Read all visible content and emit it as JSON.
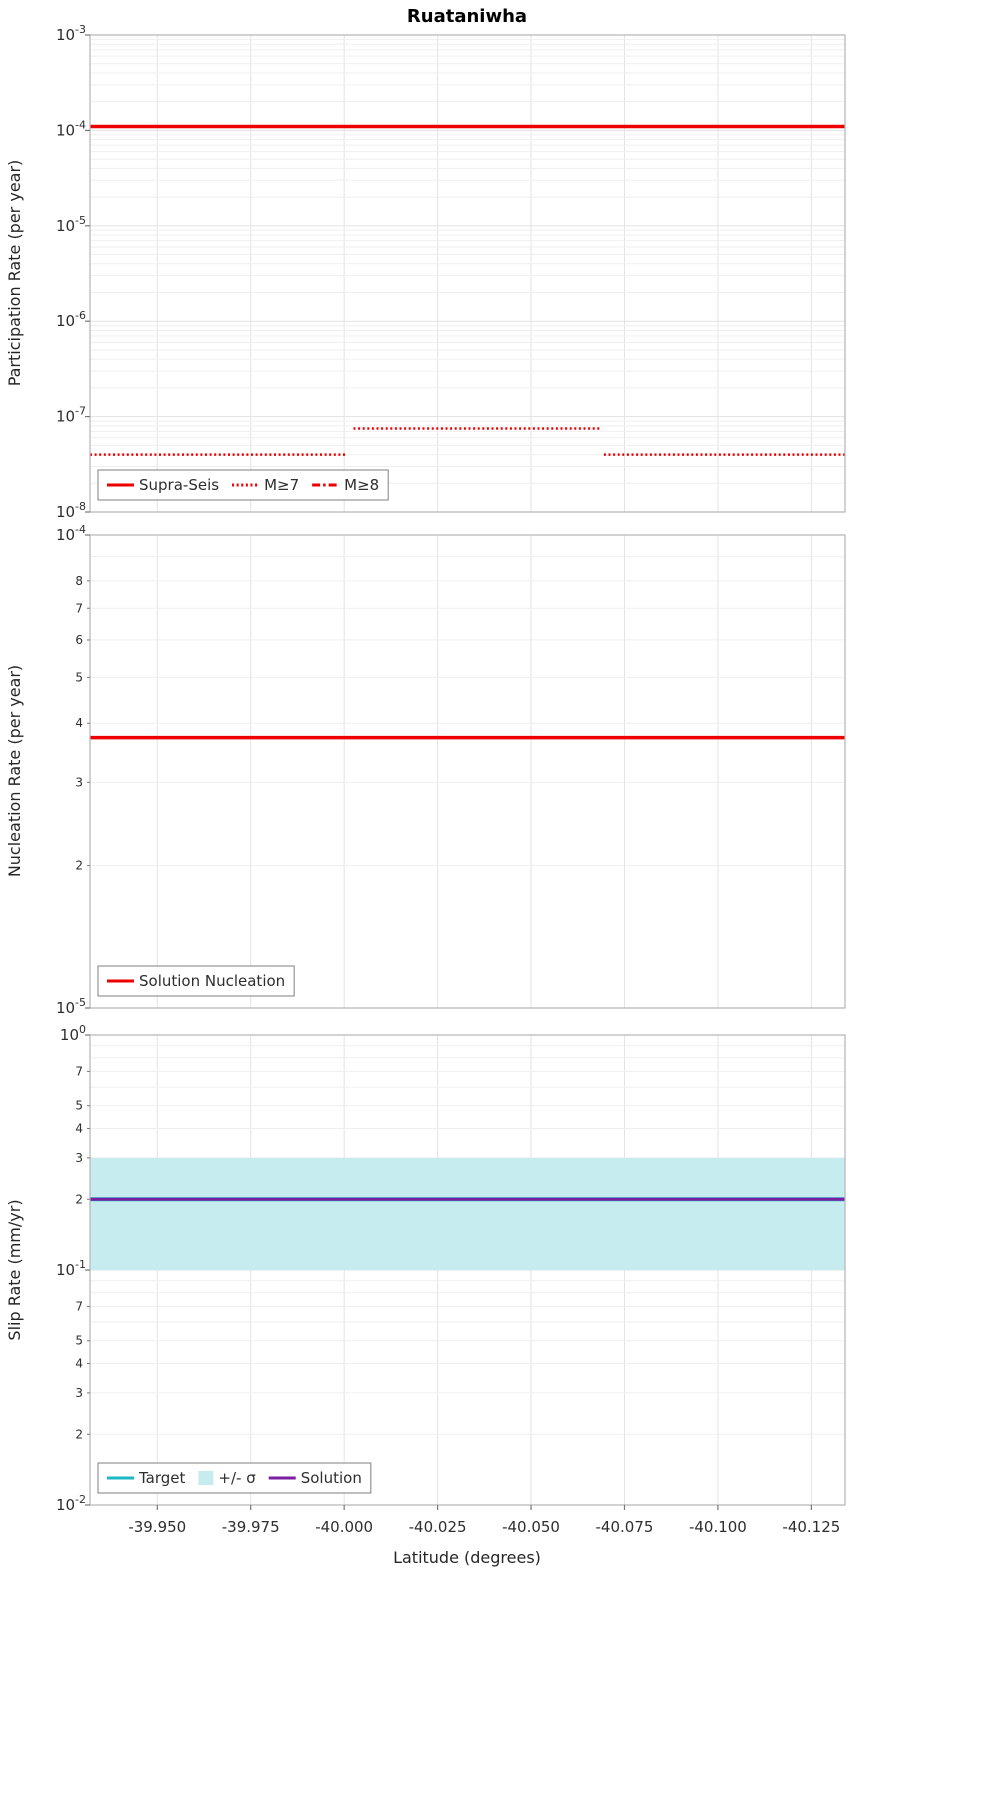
{
  "title": "Ruataniwha",
  "x_axis": {
    "label": "Latitude (degrees)",
    "range": [
      -39.932,
      -40.134
    ],
    "ticks": [
      -39.95,
      -39.975,
      -40.0,
      -40.025,
      -40.05,
      -40.075,
      -40.1,
      -40.125
    ],
    "tick_labels": [
      "-39.950",
      "-39.975",
      "-40.000",
      "-40.025",
      "-40.050",
      "-40.075",
      "-40.100",
      "-40.125"
    ]
  },
  "colors": {
    "red": "#ee0000",
    "cyan": "#1db8c4",
    "band": "#c6ecef",
    "purple": "#7b1fa2",
    "grid_minor": "#efefef",
    "grid_major": "#e3e3e3",
    "frame": "#b5b5b5",
    "tick": "#777777",
    "text": "#2e2e2e"
  },
  "chart_data": [
    {
      "type": "line",
      "name": "participation",
      "ylabel": "Participation Rate (per year)",
      "yscale": "log",
      "ylim": [
        1e-08,
        0.001
      ],
      "major_ticks": [
        -3,
        -4,
        -5,
        -6,
        -7,
        -8
      ],
      "grid": true,
      "legend_position": "lower-left",
      "series": [
        {
          "name": "Supra-Seis",
          "style": "solid",
          "color_key": "red",
          "width": 3.5,
          "segments": [
            {
              "x": [
                -39.932,
                -40.134
              ],
              "y": [
                0.00011,
                0.00011
              ]
            }
          ]
        },
        {
          "name": "M≥7",
          "style": "dotted",
          "color_key": "red",
          "width": 2.5,
          "segments": [
            {
              "x": [
                -39.932,
                -40.0005
              ],
              "y": [
                4e-08,
                4e-08
              ]
            },
            {
              "x": [
                -40.0025,
                -40.0685
              ],
              "y": [
                7.5e-08,
                7.5e-08
              ]
            },
            {
              "x": [
                -40.0695,
                -40.134
              ],
              "y": [
                4e-08,
                4e-08
              ]
            }
          ]
        },
        {
          "name": "M≥8",
          "style": "dashdot",
          "color_key": "red",
          "width": 2.5,
          "segments": []
        }
      ],
      "legend": [
        {
          "label": "Supra-Seis",
          "style": "solid",
          "color_key": "red"
        },
        {
          "label": "M≥7",
          "style": "dotted",
          "color_key": "red"
        },
        {
          "label": "M≥8",
          "style": "dashdot",
          "color_key": "red"
        }
      ]
    },
    {
      "type": "line",
      "name": "nucleation",
      "ylabel": "Nucleation Rate (per year)",
      "yscale": "log",
      "ylim": [
        1e-05,
        0.0001
      ],
      "major_ticks": [
        -4,
        -5
      ],
      "minor_labels": [
        8,
        7,
        6,
        5,
        4,
        3,
        2
      ],
      "grid": true,
      "legend_position": "lower-left",
      "series": [
        {
          "name": "Solution Nucleation",
          "style": "solid",
          "color_key": "red",
          "width": 3.5,
          "segments": [
            {
              "x": [
                -39.932,
                -40.134
              ],
              "y": [
                3.73e-05,
                3.73e-05
              ]
            }
          ]
        }
      ],
      "legend": [
        {
          "label": "Solution Nucleation",
          "style": "solid",
          "color_key": "red"
        }
      ]
    },
    {
      "type": "line",
      "name": "slip-rate",
      "ylabel": "Slip Rate (mm/yr)",
      "yscale": "log",
      "ylim": [
        0.01,
        1.0
      ],
      "major_ticks": [
        0,
        -1,
        -2
      ],
      "minor_labels": [
        7,
        5,
        4,
        3,
        2
      ],
      "grid": true,
      "legend_position": "lower-left",
      "band": {
        "label": "+/- σ",
        "y0": 0.1,
        "y1": 0.3,
        "color_key": "band"
      },
      "series": [
        {
          "name": "Target",
          "style": "solid",
          "color_key": "cyan",
          "width": 4,
          "segments": [
            {
              "x": [
                -39.932,
                -40.134
              ],
              "y": [
                0.2,
                0.2
              ]
            }
          ]
        },
        {
          "name": "Solution",
          "style": "solid",
          "color_key": "purple",
          "width": 3,
          "segments": [
            {
              "x": [
                -39.932,
                -40.134
              ],
              "y": [
                0.2,
                0.2
              ]
            }
          ]
        }
      ],
      "legend": [
        {
          "label": "Target",
          "style": "solid",
          "color_key": "cyan"
        },
        {
          "label": "+/- σ",
          "style": "patch",
          "color_key": "band"
        },
        {
          "label": "Solution",
          "style": "solid",
          "color_key": "purple"
        }
      ]
    }
  ]
}
